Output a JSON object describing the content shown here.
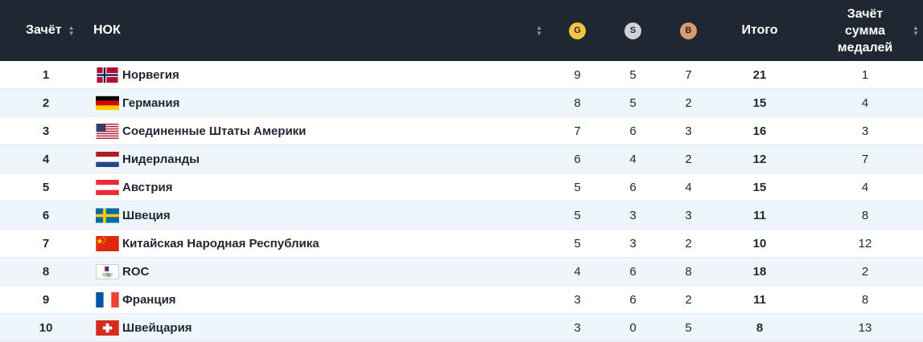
{
  "header": {
    "rank_label": "Зачёт",
    "noc_label": "НОК",
    "gold_label": "G",
    "silver_label": "S",
    "bronze_label": "B",
    "total_label": "Итого",
    "medal_rank_line1": "Зачёт",
    "medal_rank_line2": "сумма",
    "medal_rank_line3": "медалей"
  },
  "rows": [
    {
      "rank": "1",
      "noc": "Норвегия",
      "flag": "norway-flag-icon",
      "gold": "9",
      "silver": "5",
      "bronze": "7",
      "total": "21",
      "medal_rank": "1"
    },
    {
      "rank": "2",
      "noc": "Германия",
      "flag": "germany-flag-icon",
      "gold": "8",
      "silver": "5",
      "bronze": "2",
      "total": "15",
      "medal_rank": "4"
    },
    {
      "rank": "3",
      "noc": "Соединенные Штаты Америки",
      "flag": "usa-flag-icon",
      "gold": "7",
      "silver": "6",
      "bronze": "3",
      "total": "16",
      "medal_rank": "3"
    },
    {
      "rank": "4",
      "noc": "Нидерланды",
      "flag": "netherlands-flag-icon",
      "gold": "6",
      "silver": "4",
      "bronze": "2",
      "total": "12",
      "medal_rank": "7"
    },
    {
      "rank": "5",
      "noc": "Австрия",
      "flag": "austria-flag-icon",
      "gold": "5",
      "silver": "6",
      "bronze": "4",
      "total": "15",
      "medal_rank": "4"
    },
    {
      "rank": "6",
      "noc": "Швеция",
      "flag": "sweden-flag-icon",
      "gold": "5",
      "silver": "3",
      "bronze": "3",
      "total": "11",
      "medal_rank": "8"
    },
    {
      "rank": "7",
      "noc": "Китайская Народная Республика",
      "flag": "china-flag-icon",
      "gold": "5",
      "silver": "3",
      "bronze": "2",
      "total": "10",
      "medal_rank": "12"
    },
    {
      "rank": "8",
      "noc": "ROC",
      "flag": "roc-flag-icon",
      "gold": "4",
      "silver": "6",
      "bronze": "8",
      "total": "18",
      "medal_rank": "2"
    },
    {
      "rank": "9",
      "noc": "Франция",
      "flag": "france-flag-icon",
      "gold": "3",
      "silver": "6",
      "bronze": "2",
      "total": "11",
      "medal_rank": "8"
    },
    {
      "rank": "10",
      "noc": "Швейцария",
      "flag": "switzerland-flag-icon",
      "gold": "3",
      "silver": "0",
      "bronze": "5",
      "total": "8",
      "medal_rank": "13"
    }
  ],
  "colors": {
    "header_bg": "#1f2733",
    "alt_row_bg": "#eef6fc",
    "gold": "#f4c542",
    "silver": "#cfd3d8",
    "bronze": "#d89a6a"
  }
}
